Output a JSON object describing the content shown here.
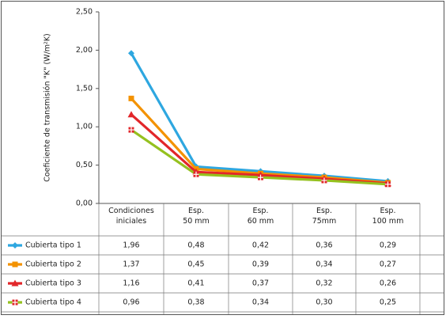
{
  "chart_data": {
    "type": "line",
    "ylabel": "Coeficiente de transmisión \"K\" (W/m²K)",
    "categories": [
      "Condiciones\niniciales",
      "Esp.\n50 mm",
      "Esp.\n60 mm",
      "Esp.\n75mm",
      "Esp.\n100 mm"
    ],
    "series": [
      {
        "name": "Cubierta tipo 1",
        "color": "#2ea7e0",
        "values": [
          1.96,
          0.48,
          0.42,
          0.36,
          0.29
        ],
        "value_labels": [
          "1,96",
          "0,48",
          "0,42",
          "0,36",
          "0,29"
        ]
      },
      {
        "name": "Cubierta tipo 2",
        "color": "#f39200",
        "values": [
          1.37,
          0.45,
          0.39,
          0.34,
          0.27
        ],
        "value_labels": [
          "1,37",
          "0,45",
          "0,39",
          "0,34",
          "0,27"
        ]
      },
      {
        "name": "Cubierta tipo 3",
        "color": "#e2262a",
        "values": [
          1.16,
          0.41,
          0.37,
          0.32,
          0.26
        ],
        "value_labels": [
          "1,16",
          "0,41",
          "0,37",
          "0,32",
          "0,26"
        ]
      },
      {
        "name": "Cubierta tipo 4",
        "color": "#95c11f",
        "values": [
          0.96,
          0.38,
          0.34,
          0.3,
          0.25
        ],
        "value_labels": [
          "0,96",
          "0,38",
          "0,34",
          "0,30",
          "0,25"
        ]
      }
    ],
    "ylim": [
      0,
      2.5
    ],
    "yticks": [
      {
        "value": 0,
        "label": "0,00"
      },
      {
        "value": 0.5,
        "label": "0,50"
      },
      {
        "value": 1,
        "label": "1,00"
      },
      {
        "value": 1.5,
        "label": "1,50"
      },
      {
        "value": 2,
        "label": "2,00"
      },
      {
        "value": 2.5,
        "label": "2,50"
      }
    ],
    "grid": false
  }
}
